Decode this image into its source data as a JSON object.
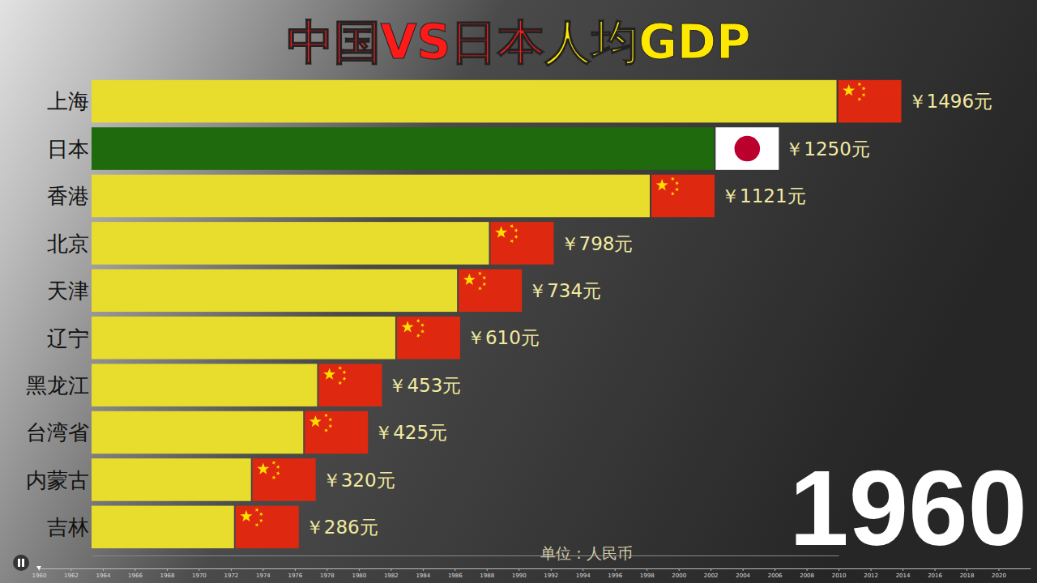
{
  "chart_data": {
    "type": "bar",
    "orientation": "horizontal",
    "title": "中国VS日本",
    "subtitle": "人均GDP",
    "categories": [
      "上海",
      "日本",
      "香港",
      "北京",
      "天津",
      "辽宁",
      "黑龙江",
      "台湾省",
      "内蒙古",
      "吉林"
    ],
    "values": [
      1496,
      1250,
      1121,
      798,
      734,
      610,
      453,
      425,
      320,
      286
    ],
    "value_labels": [
      "￥1496元",
      "￥1250元",
      "￥1121元",
      "￥798元",
      "￥734元",
      "￥610元",
      "￥453元",
      "￥425元",
      "￥320元",
      "￥286元"
    ],
    "colors": [
      "#e8dc2c",
      "#1e6a0c",
      "#e8dc2c",
      "#e8dc2c",
      "#e8dc2c",
      "#e8dc2c",
      "#e8dc2c",
      "#e8dc2c",
      "#e8dc2c",
      "#e8dc2c"
    ],
    "data_labels": true,
    "xlim": [
      0,
      1500
    ],
    "tick_labels": false,
    "grid": false,
    "year": 1960,
    "unit": "单位：人民币",
    "timeline": {
      "xlim": [
        1960,
        2022
      ],
      "xticks": [
        1960,
        1962,
        1964,
        1966,
        1968,
        1970,
        1972,
        1974,
        1976,
        1978,
        1980,
        1982,
        1984,
        1986,
        1988,
        1990,
        1992,
        1994,
        1996,
        1998,
        2000,
        2002,
        2004,
        2006,
        2008,
        2010,
        2012,
        2014,
        2016,
        2018,
        2020
      ]
    }
  }
}
